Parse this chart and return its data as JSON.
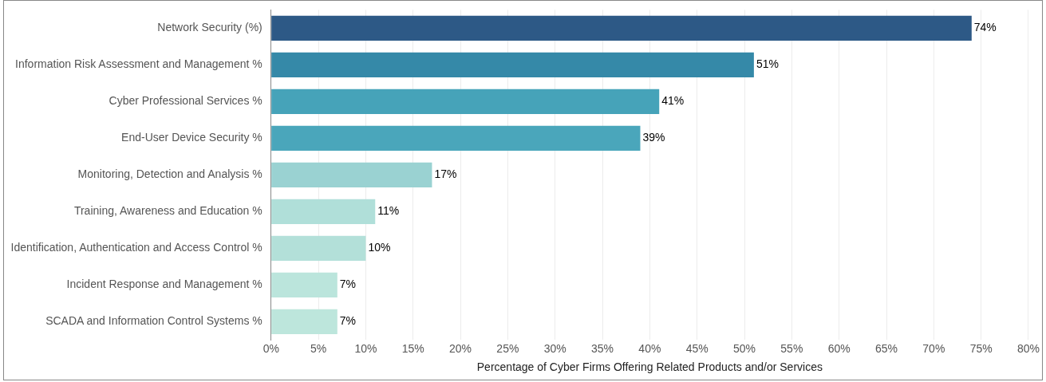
{
  "chart_data": {
    "type": "bar",
    "orientation": "horizontal",
    "xlabel": "Percentage of Cyber Firms Offering Related Products and/or Services",
    "categories": [
      "Network Security (%)",
      "Information Risk Assessment and Management %",
      "Cyber Professional Services %",
      "End-User Device Security %",
      "Monitoring, Detection and Analysis %",
      "Training, Awareness and Education %",
      "Identification, Authentication and Access Control %",
      "Incident Response and Management %",
      "SCADA and Information Control Systems %"
    ],
    "values": [
      74,
      51,
      41,
      39,
      17,
      11,
      10,
      7,
      7
    ],
    "value_labels": [
      "74%",
      "51%",
      "41%",
      "39%",
      "17%",
      "11%",
      "10%",
      "7%",
      "7%"
    ],
    "colors": [
      "#2d5986",
      "#3589a8",
      "#46a3b9",
      "#4aa6bb",
      "#9ad2d2",
      "#b0dfd9",
      "#b3e0d9",
      "#bbe5dc",
      "#bde6dc"
    ],
    "xlim": [
      0,
      80
    ],
    "xticks": [
      {
        "value": 0,
        "label": "0%"
      },
      {
        "value": 5,
        "label": "5%"
      },
      {
        "value": 10,
        "label": "10%"
      },
      {
        "value": 15,
        "label": "15%"
      },
      {
        "value": 20,
        "label": "20%"
      },
      {
        "value": 25,
        "label": "25%"
      },
      {
        "value": 30,
        "label": "30%"
      },
      {
        "value": 35,
        "label": "35%"
      },
      {
        "value": 40,
        "label": "40%"
      },
      {
        "value": 45,
        "label": "45%"
      },
      {
        "value": 50,
        "label": "50%"
      },
      {
        "value": 55,
        "label": "55%"
      },
      {
        "value": 60,
        "label": "60%"
      },
      {
        "value": 65,
        "label": "65%"
      },
      {
        "value": 70,
        "label": "70%"
      },
      {
        "value": 75,
        "label": "75%"
      },
      {
        "value": 80,
        "label": "80%"
      }
    ],
    "grid": "x",
    "legend": false
  }
}
